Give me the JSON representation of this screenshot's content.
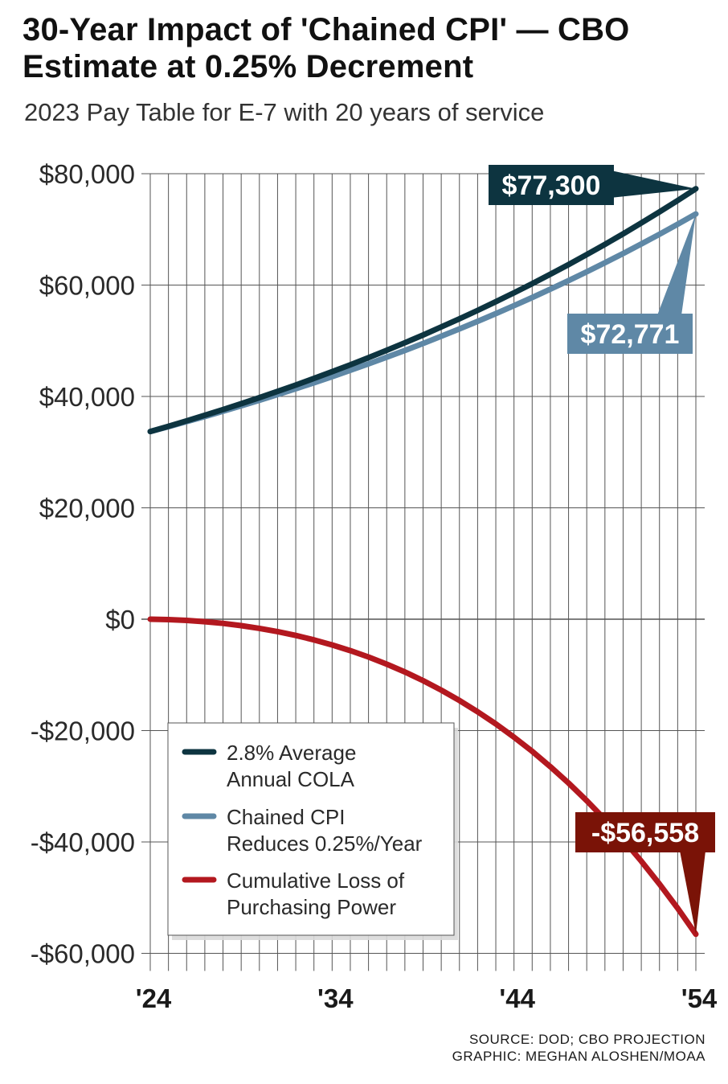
{
  "chart_data": {
    "type": "line",
    "title": "30-Year Impact of 'Chained CPI' — CBO Estimate at 0.25% Decrement",
    "subtitle": "2023 Pay Table for E-7 with 20 years of service",
    "x_start_year": 2024,
    "x_end_year": 2054,
    "x_tick_labels": [
      "'24",
      "'34",
      "'44",
      "'54"
    ],
    "x_tick_years": [
      2024,
      2034,
      2044,
      2054
    ],
    "y_tick_labels": [
      "$80,000",
      "$60,000",
      "$40,000",
      "$20,000",
      "$0",
      "-$20,000",
      "-$40,000",
      "-$60,000"
    ],
    "y_tick_values": [
      80000,
      60000,
      40000,
      20000,
      0,
      -20000,
      -40000,
      -60000
    ],
    "ylim": [
      -62000,
      80000
    ],
    "grid": "vertical line per year; horizontal line per y tick",
    "legend_position": "lower-left",
    "series": [
      {
        "name": "2.8% Average Annual COLA",
        "color": "#0d3440",
        "start_value": 33700,
        "end_value": 77300,
        "end_label": "$77,300"
      },
      {
        "name": "Chained CPI Reduces 0.25%/Year",
        "color": "#5f88a6",
        "start_value": 33700,
        "end_value": 72771,
        "end_label": "$72,771"
      },
      {
        "name": "Cumulative Loss of Purchasing Power",
        "color": "#b3181f",
        "start_value": 0,
        "end_value": -56558,
        "end_label": "-$56,558"
      }
    ],
    "legend_lines": [
      [
        "2.8% Average",
        "Annual COLA"
      ],
      [
        "Chained CPI",
        "Reduces 0.25%/Year"
      ],
      [
        "Cumulative Loss of",
        "Purchasing Power"
      ]
    ]
  },
  "credits": {
    "source": "SOURCE: DOD; CBO PROJECTION",
    "graphic": "GRAPHIC: MEGHAN ALOSHEN/MOAA"
  },
  "colors": {
    "cola": "#0d3440",
    "chained": "#5f88a6",
    "loss": "#b3181f",
    "loss_callout": "#7a1307",
    "grid": "#555555"
  }
}
